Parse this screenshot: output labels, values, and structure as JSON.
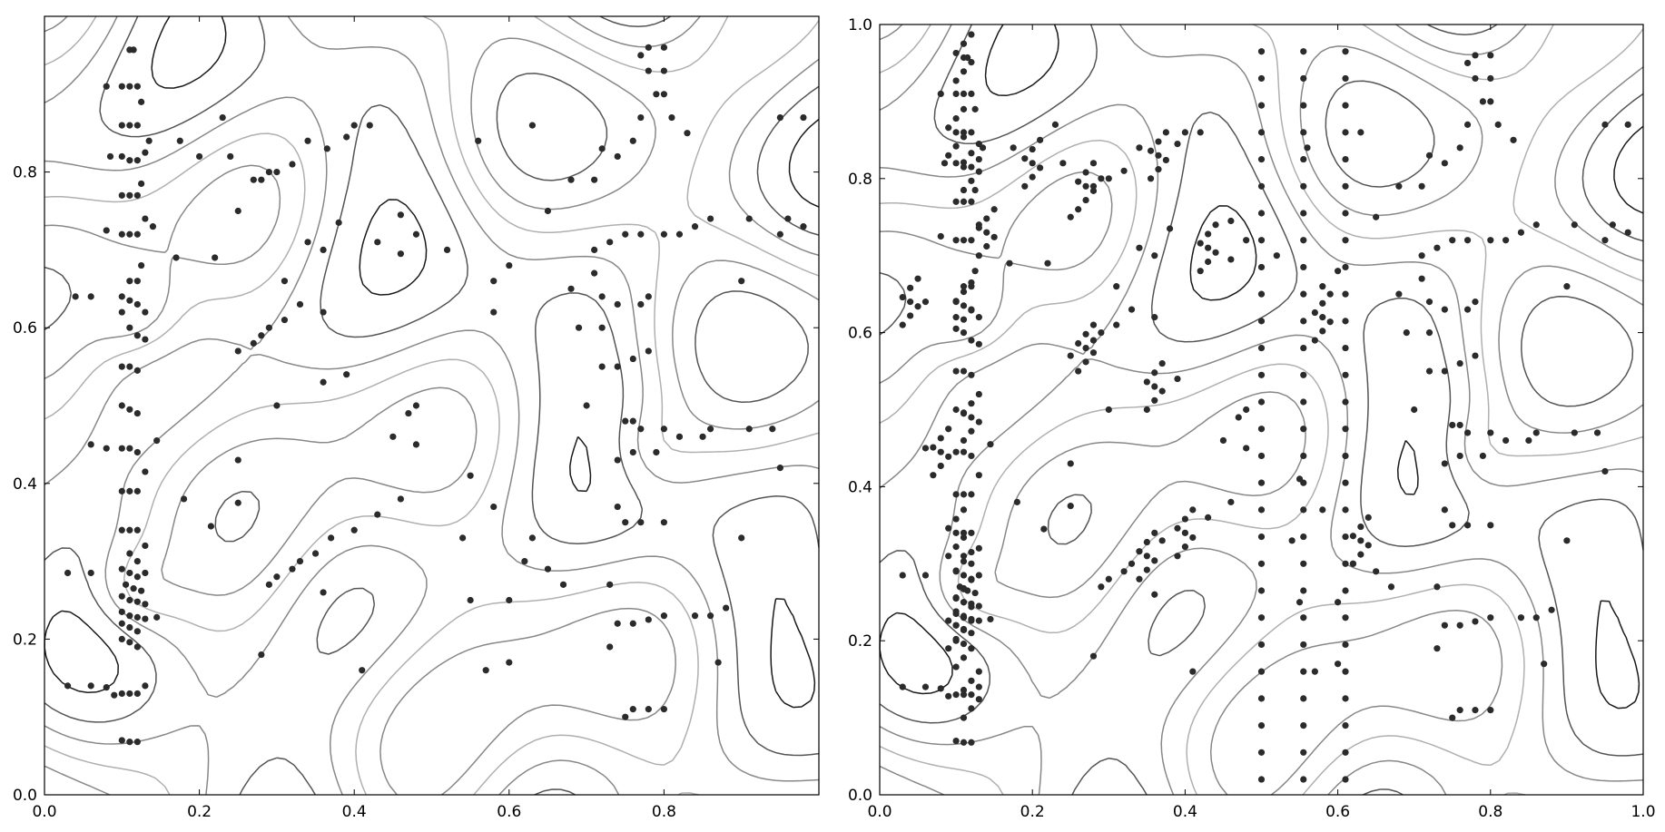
{
  "chart_data": [
    {
      "type": "scatter",
      "overlay": "contour",
      "title": "",
      "xlabel": "",
      "ylabel": "",
      "xlim": [
        0.0,
        1.0
      ],
      "ylim": [
        0.0,
        1.0
      ],
      "xticks": [
        "0.0",
        "0.2",
        "0.4",
        "0.6",
        "0.8"
      ],
      "yticks": [
        "0.0",
        "0.2",
        "0.4",
        "0.6",
        "0.8"
      ],
      "grid": false,
      "legend": "none",
      "colors": {
        "points": "#2b2b2b",
        "contour_levels": [
          "#1a1a1a",
          "#555555",
          "#888888",
          "#b0b0b0"
        ]
      },
      "points": [
        [
          0.11,
          0.957
        ],
        [
          0.115,
          0.957
        ],
        [
          0.08,
          0.91
        ],
        [
          0.1,
          0.91
        ],
        [
          0.11,
          0.91
        ],
        [
          0.12,
          0.91
        ],
        [
          0.125,
          0.89
        ],
        [
          0.1,
          0.86
        ],
        [
          0.11,
          0.86
        ],
        [
          0.12,
          0.86
        ],
        [
          0.135,
          0.84
        ],
        [
          0.085,
          0.82
        ],
        [
          0.1,
          0.82
        ],
        [
          0.11,
          0.815
        ],
        [
          0.12,
          0.815
        ],
        [
          0.13,
          0.825
        ],
        [
          0.125,
          0.785
        ],
        [
          0.1,
          0.77
        ],
        [
          0.11,
          0.77
        ],
        [
          0.12,
          0.77
        ],
        [
          0.13,
          0.74
        ],
        [
          0.14,
          0.73
        ],
        [
          0.08,
          0.725
        ],
        [
          0.1,
          0.72
        ],
        [
          0.11,
          0.72
        ],
        [
          0.12,
          0.72
        ],
        [
          0.125,
          0.68
        ],
        [
          0.175,
          0.84
        ],
        [
          0.2,
          0.82
        ],
        [
          0.23,
          0.87
        ],
        [
          0.17,
          0.69
        ],
        [
          0.22,
          0.69
        ],
        [
          0.11,
          0.66
        ],
        [
          0.12,
          0.66
        ],
        [
          0.1,
          0.64
        ],
        [
          0.11,
          0.635
        ],
        [
          0.12,
          0.63
        ],
        [
          0.13,
          0.62
        ],
        [
          0.1,
          0.62
        ],
        [
          0.11,
          0.6
        ],
        [
          0.12,
          0.59
        ],
        [
          0.13,
          0.585
        ],
        [
          0.04,
          0.64
        ],
        [
          0.06,
          0.64
        ],
        [
          0.1,
          0.55
        ],
        [
          0.11,
          0.55
        ],
        [
          0.12,
          0.545
        ],
        [
          0.1,
          0.5
        ],
        [
          0.11,
          0.495
        ],
        [
          0.12,
          0.49
        ],
        [
          0.1,
          0.445
        ],
        [
          0.11,
          0.445
        ],
        [
          0.12,
          0.44
        ],
        [
          0.145,
          0.455
        ],
        [
          0.13,
          0.415
        ],
        [
          0.06,
          0.45
        ],
        [
          0.08,
          0.445
        ],
        [
          0.1,
          0.39
        ],
        [
          0.11,
          0.39
        ],
        [
          0.12,
          0.39
        ],
        [
          0.18,
          0.38
        ],
        [
          0.215,
          0.345
        ],
        [
          0.25,
          0.375
        ],
        [
          0.1,
          0.34
        ],
        [
          0.11,
          0.34
        ],
        [
          0.12,
          0.34
        ],
        [
          0.13,
          0.32
        ],
        [
          0.11,
          0.31
        ],
        [
          0.12,
          0.3
        ],
        [
          0.1,
          0.29
        ],
        [
          0.11,
          0.285
        ],
        [
          0.12,
          0.28
        ],
        [
          0.13,
          0.285
        ],
        [
          0.105,
          0.27
        ],
        [
          0.115,
          0.265
        ],
        [
          0.125,
          0.262
        ],
        [
          0.1,
          0.255
        ],
        [
          0.11,
          0.25
        ],
        [
          0.12,
          0.248
        ],
        [
          0.13,
          0.245
        ],
        [
          0.1,
          0.235
        ],
        [
          0.11,
          0.23
        ],
        [
          0.12,
          0.228
        ],
        [
          0.13,
          0.226
        ],
        [
          0.1,
          0.22
        ],
        [
          0.11,
          0.215
        ],
        [
          0.12,
          0.21
        ],
        [
          0.145,
          0.228
        ],
        [
          0.03,
          0.285
        ],
        [
          0.06,
          0.285
        ],
        [
          0.1,
          0.2
        ],
        [
          0.11,
          0.196
        ],
        [
          0.12,
          0.19
        ],
        [
          0.03,
          0.14
        ],
        [
          0.06,
          0.14
        ],
        [
          0.08,
          0.138
        ],
        [
          0.1,
          0.13
        ],
        [
          0.11,
          0.13
        ],
        [
          0.12,
          0.13
        ],
        [
          0.13,
          0.14
        ],
        [
          0.09,
          0.128
        ],
        [
          0.1,
          0.07
        ],
        [
          0.11,
          0.068
        ],
        [
          0.12,
          0.068
        ],
        [
          0.24,
          0.82
        ],
        [
          0.27,
          0.79
        ],
        [
          0.28,
          0.79
        ],
        [
          0.29,
          0.8
        ],
        [
          0.3,
          0.8
        ],
        [
          0.32,
          0.81
        ],
        [
          0.25,
          0.75
        ],
        [
          0.34,
          0.84
        ],
        [
          0.365,
          0.83
        ],
        [
          0.39,
          0.845
        ],
        [
          0.4,
          0.86
        ],
        [
          0.42,
          0.86
        ],
        [
          0.34,
          0.71
        ],
        [
          0.36,
          0.7
        ],
        [
          0.38,
          0.735
        ],
        [
          0.43,
          0.71
        ],
        [
          0.46,
          0.695
        ],
        [
          0.48,
          0.72
        ],
        [
          0.46,
          0.745
        ],
        [
          0.31,
          0.66
        ],
        [
          0.36,
          0.62
        ],
        [
          0.25,
          0.57
        ],
        [
          0.27,
          0.58
        ],
        [
          0.28,
          0.59
        ],
        [
          0.29,
          0.6
        ],
        [
          0.31,
          0.61
        ],
        [
          0.33,
          0.63
        ],
        [
          0.3,
          0.5
        ],
        [
          0.25,
          0.43
        ],
        [
          0.36,
          0.53
        ],
        [
          0.39,
          0.54
        ],
        [
          0.45,
          0.46
        ],
        [
          0.47,
          0.49
        ],
        [
          0.48,
          0.5
        ],
        [
          0.48,
          0.45
        ],
        [
          0.55,
          0.41
        ],
        [
          0.58,
          0.62
        ],
        [
          0.52,
          0.7
        ],
        [
          0.58,
          0.66
        ],
        [
          0.6,
          0.68
        ],
        [
          0.56,
          0.84
        ],
        [
          0.63,
          0.86
        ],
        [
          0.37,
          0.33
        ],
        [
          0.4,
          0.34
        ],
        [
          0.43,
          0.36
        ],
        [
          0.46,
          0.38
        ],
        [
          0.29,
          0.27
        ],
        [
          0.3,
          0.28
        ],
        [
          0.32,
          0.29
        ],
        [
          0.33,
          0.3
        ],
        [
          0.35,
          0.31
        ],
        [
          0.36,
          0.26
        ],
        [
          0.41,
          0.16
        ],
        [
          0.28,
          0.18
        ],
        [
          0.54,
          0.33
        ],
        [
          0.55,
          0.25
        ],
        [
          0.58,
          0.37
        ],
        [
          0.63,
          0.33
        ],
        [
          0.62,
          0.3
        ],
        [
          0.6,
          0.25
        ],
        [
          0.57,
          0.16
        ],
        [
          0.6,
          0.17
        ],
        [
          0.65,
          0.29
        ],
        [
          0.67,
          0.27
        ],
        [
          0.73,
          0.27
        ],
        [
          0.65,
          0.75
        ],
        [
          0.68,
          0.79
        ],
        [
          0.71,
          0.79
        ],
        [
          0.72,
          0.83
        ],
        [
          0.74,
          0.82
        ],
        [
          0.76,
          0.84
        ],
        [
          0.77,
          0.87
        ],
        [
          0.79,
          0.9
        ],
        [
          0.8,
          0.9
        ],
        [
          0.81,
          0.87
        ],
        [
          0.83,
          0.85
        ],
        [
          0.71,
          0.7
        ],
        [
          0.73,
          0.71
        ],
        [
          0.75,
          0.72
        ],
        [
          0.77,
          0.72
        ],
        [
          0.8,
          0.72
        ],
        [
          0.82,
          0.72
        ],
        [
          0.84,
          0.73
        ],
        [
          0.86,
          0.74
        ],
        [
          0.91,
          0.74
        ],
        [
          0.95,
          0.72
        ],
        [
          0.9,
          0.66
        ],
        [
          0.68,
          0.65
        ],
        [
          0.71,
          0.67
        ],
        [
          0.72,
          0.64
        ],
        [
          0.74,
          0.63
        ],
        [
          0.77,
          0.63
        ],
        [
          0.78,
          0.64
        ],
        [
          0.72,
          0.55
        ],
        [
          0.74,
          0.55
        ],
        [
          0.76,
          0.56
        ],
        [
          0.78,
          0.57
        ],
        [
          0.69,
          0.6
        ],
        [
          0.72,
          0.6
        ],
        [
          0.7,
          0.5
        ],
        [
          0.75,
          0.48
        ],
        [
          0.76,
          0.48
        ],
        [
          0.77,
          0.47
        ],
        [
          0.8,
          0.47
        ],
        [
          0.82,
          0.46
        ],
        [
          0.74,
          0.43
        ],
        [
          0.76,
          0.44
        ],
        [
          0.79,
          0.44
        ],
        [
          0.85,
          0.46
        ],
        [
          0.86,
          0.47
        ],
        [
          0.74,
          0.37
        ],
        [
          0.75,
          0.35
        ],
        [
          0.77,
          0.35
        ],
        [
          0.8,
          0.35
        ],
        [
          0.74,
          0.22
        ],
        [
          0.76,
          0.22
        ],
        [
          0.78,
          0.225
        ],
        [
          0.8,
          0.23
        ],
        [
          0.84,
          0.23
        ],
        [
          0.86,
          0.23
        ],
        [
          0.88,
          0.24
        ],
        [
          0.9,
          0.33
        ],
        [
          0.91,
          0.47
        ],
        [
          0.95,
          0.42
        ],
        [
          0.94,
          0.47
        ],
        [
          0.73,
          0.19
        ],
        [
          0.75,
          0.1
        ],
        [
          0.76,
          0.11
        ],
        [
          0.78,
          0.11
        ],
        [
          0.8,
          0.11
        ],
        [
          0.87,
          0.17
        ],
        [
          0.78,
          0.93
        ],
        [
          0.8,
          0.93
        ],
        [
          0.8,
          0.96
        ],
        [
          0.78,
          0.96
        ],
        [
          0.77,
          0.95
        ],
        [
          0.95,
          0.87
        ],
        [
          0.98,
          0.87
        ],
        [
          0.96,
          0.74
        ],
        [
          0.98,
          0.73
        ]
      ]
    },
    {
      "type": "scatter",
      "overlay": "contour",
      "title": "",
      "xlabel": "",
      "ylabel": "",
      "xlim": [
        0.0,
        1.0
      ],
      "ylim": [
        0.0,
        1.0
      ],
      "xticks": [
        "0.0",
        "0.2",
        "0.4",
        "0.6",
        "0.8",
        "1.0"
      ],
      "yticks": [
        "0.0",
        "0.2",
        "0.4",
        "0.6",
        "0.8",
        "1.0"
      ],
      "grid": false,
      "legend": "none",
      "colors": {
        "points": "#2b2b2b",
        "contour_levels": [
          "#1a1a1a",
          "#555555",
          "#888888",
          "#b0b0b0"
        ]
      },
      "points": "generated"
    }
  ]
}
